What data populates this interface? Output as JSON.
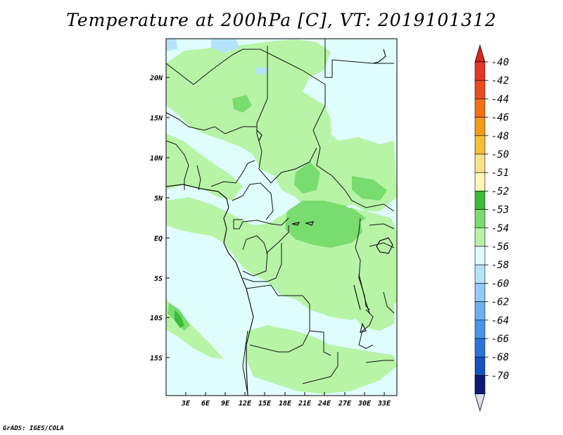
{
  "title": "Temperature at 200hPa [C], VT: 2019101312",
  "footer": "GrADS: IGES/COLA",
  "map": {
    "lat_labels": [
      "20N",
      "15N",
      "10N",
      "5N",
      "EQ",
      "5S",
      "10S",
      "15S"
    ],
    "lon_labels": [
      "3E",
      "6E",
      "9E",
      "12E",
      "15E",
      "18E",
      "21E",
      "24E",
      "27E",
      "30E",
      "33E"
    ]
  },
  "colorbar": {
    "levels": [
      {
        "label": "-40",
        "color": "#e8372a"
      },
      {
        "label": "-42",
        "color": "#ee4a1c"
      },
      {
        "label": "-44",
        "color": "#f36f14"
      },
      {
        "label": "-46",
        "color": "#f69a1a"
      },
      {
        "label": "-48",
        "color": "#f8bd3a"
      },
      {
        "label": "-50",
        "color": "#fbe28a"
      },
      {
        "label": "-51",
        "color": "#fdf7b6"
      },
      {
        "label": "-52",
        "color": "#3cbc3c"
      },
      {
        "label": "-53",
        "color": "#78dc6e"
      },
      {
        "label": "-54",
        "color": "#b7f4a6"
      },
      {
        "label": "-56",
        "color": "#e0fdfd"
      },
      {
        "label": "-58",
        "color": "#b4e4fb"
      },
      {
        "label": "-60",
        "color": "#94caf8"
      },
      {
        "label": "-62",
        "color": "#6eaff1"
      },
      {
        "label": "-64",
        "color": "#4994ea"
      },
      {
        "label": "-66",
        "color": "#2c72dc"
      },
      {
        "label": "-68",
        "color": "#1553c2"
      },
      {
        "label": "-70",
        "color": "#0a35a0"
      }
    ],
    "top_color": "#d8261e",
    "bottom_color": "#0a1a7a",
    "end_color": "#dcdcf6"
  }
}
